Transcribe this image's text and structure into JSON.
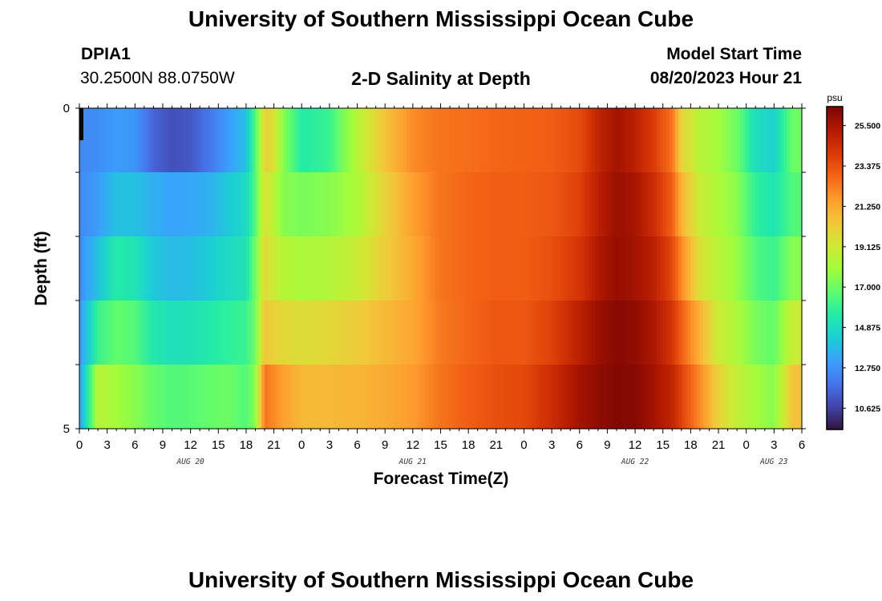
{
  "page": {
    "title": "University of Southern Mississippi Ocean Cube",
    "footer_title": "University of Southern Mississippi Ocean Cube"
  },
  "header": {
    "station_id": "DPIA1",
    "coordinates": "30.2500N  88.0750W",
    "plot_title": "2-D Salinity at Depth",
    "model_start_label": "Model Start Time",
    "model_start_value": "08/20/2023 Hour 21"
  },
  "chart_data": {
    "type": "heatmap",
    "title": "2-D Salinity at Depth",
    "xlabel": "Forecast Time(Z)",
    "ylabel": "Depth (ft)",
    "y_tick_labels": [
      "0",
      "5"
    ],
    "ylim": [
      0,
      5
    ],
    "x_tick_labels": [
      "0",
      "3",
      "6",
      "9",
      "12",
      "15",
      "18",
      "21",
      "0",
      "3",
      "6",
      "9",
      "12",
      "15",
      "18",
      "21",
      "0",
      "3",
      "6",
      "9",
      "12",
      "15",
      "18",
      "21",
      "0",
      "3",
      "6"
    ],
    "date_labels": [
      {
        "text": "AUG 20",
        "hour_index": 12
      },
      {
        "text": "AUG 21",
        "hour_index": 36
      },
      {
        "text": "AUG 22",
        "hour_index": 60
      },
      {
        "text": "AUG 23",
        "hour_index": 75
      }
    ],
    "hours_total": 78,
    "depth_rows": 5,
    "colorbar": {
      "unit": "psu",
      "min": 9.5,
      "max": 26.5,
      "tick_values": [
        "25.500",
        "23.375",
        "21.250",
        "19.125",
        "17.000",
        "14.875",
        "12.750",
        "10.625"
      ],
      "colors": [
        "#30123b",
        "#4145ab",
        "#4675ed",
        "#39a2fc",
        "#1bcfd4",
        "#24eca6",
        "#61fc6c",
        "#a4fc3b",
        "#d1e834",
        "#f3c63a",
        "#fe9b2d",
        "#f36315",
        "#d93806",
        "#b11901",
        "#7a0402"
      ]
    },
    "salinity_profiles": [
      {
        "hour": 0,
        "values": [
          12.5,
          12.5,
          12.6,
          12.8,
          13.0
        ]
      },
      {
        "hour": 2,
        "values": [
          12.6,
          13.0,
          14.0,
          16.0,
          18.5
        ]
      },
      {
        "hour": 4,
        "values": [
          13.0,
          14.0,
          15.5,
          16.8,
          18.0
        ]
      },
      {
        "hour": 6,
        "values": [
          12.8,
          14.0,
          15.2,
          16.5,
          17.5
        ]
      },
      {
        "hour": 8,
        "values": [
          11.5,
          13.5,
          14.2,
          15.4,
          16.8
        ]
      },
      {
        "hour": 10,
        "values": [
          11.0,
          13.2,
          13.8,
          15.0,
          16.5
        ]
      },
      {
        "hour": 12,
        "values": [
          11.2,
          13.3,
          13.9,
          15.1,
          16.6
        ]
      },
      {
        "hour": 14,
        "values": [
          12.0,
          13.5,
          14.3,
          15.4,
          16.8
        ]
      },
      {
        "hour": 16,
        "values": [
          13.0,
          14.2,
          14.8,
          15.8,
          17.0
        ]
      },
      {
        "hour": 18,
        "values": [
          14.0,
          14.8,
          15.2,
          16.0,
          16.5
        ]
      },
      {
        "hour": 19,
        "values": [
          16.5,
          16.5,
          17.0,
          17.0,
          17.5
        ]
      },
      {
        "hour": 20,
        "values": [
          20.0,
          19.5,
          19.8,
          20.5,
          22.5
        ]
      },
      {
        "hour": 21,
        "values": [
          19.5,
          18.5,
          19.0,
          20.0,
          22.0
        ]
      },
      {
        "hour": 22,
        "values": [
          17.5,
          17.5,
          18.5,
          19.8,
          21.5
        ]
      },
      {
        "hour": 24,
        "values": [
          15.5,
          17.2,
          18.2,
          19.6,
          20.8
        ]
      },
      {
        "hour": 27,
        "values": [
          16.0,
          17.5,
          18.4,
          19.8,
          20.8
        ]
      },
      {
        "hour": 30,
        "values": [
          18.5,
          18.2,
          19.0,
          20.2,
          20.9
        ]
      },
      {
        "hour": 33,
        "values": [
          20.5,
          20.0,
          20.2,
          20.8,
          21.2
        ]
      },
      {
        "hour": 36,
        "values": [
          22.0,
          21.5,
          21.2,
          21.3,
          21.6
        ]
      },
      {
        "hour": 39,
        "values": [
          22.5,
          22.5,
          22.5,
          22.4,
          22.5
        ]
      },
      {
        "hour": 42,
        "values": [
          22.6,
          22.8,
          22.8,
          22.8,
          23.0
        ]
      },
      {
        "hour": 45,
        "values": [
          22.8,
          23.0,
          23.0,
          23.2,
          23.4
        ]
      },
      {
        "hour": 48,
        "values": [
          22.9,
          23.0,
          23.0,
          23.2,
          23.6
        ]
      },
      {
        "hour": 51,
        "values": [
          23.0,
          23.2,
          23.4,
          23.8,
          24.5
        ]
      },
      {
        "hour": 54,
        "values": [
          23.5,
          23.8,
          24.2,
          25.0,
          25.6
        ]
      },
      {
        "hour": 56,
        "values": [
          24.8,
          25.0,
          25.3,
          25.8,
          26.0
        ]
      },
      {
        "hour": 58,
        "values": [
          25.6,
          25.8,
          25.9,
          26.2,
          26.3
        ]
      },
      {
        "hour": 60,
        "values": [
          25.0,
          25.5,
          25.6,
          26.0,
          26.2
        ]
      },
      {
        "hour": 62,
        "values": [
          24.0,
          24.5,
          25.0,
          25.4,
          25.6
        ]
      },
      {
        "hour": 64,
        "values": [
          22.5,
          23.0,
          23.6,
          24.2,
          24.8
        ]
      },
      {
        "hour": 65,
        "values": [
          20.0,
          21.0,
          22.0,
          23.0,
          23.8
        ]
      },
      {
        "hour": 67,
        "values": [
          18.5,
          19.0,
          19.5,
          21.0,
          22.0
        ]
      },
      {
        "hour": 69,
        "values": [
          18.0,
          18.2,
          18.5,
          19.0,
          20.0
        ]
      },
      {
        "hour": 71,
        "values": [
          17.0,
          17.5,
          17.8,
          18.2,
          18.8
        ]
      },
      {
        "hour": 73,
        "values": [
          15.0,
          15.8,
          16.5,
          17.2,
          18.0
        ]
      },
      {
        "hour": 75,
        "values": [
          14.5,
          15.2,
          16.0,
          16.8,
          17.5
        ]
      },
      {
        "hour": 77,
        "values": [
          17.0,
          16.5,
          17.5,
          19.0,
          20.5
        ]
      }
    ]
  }
}
